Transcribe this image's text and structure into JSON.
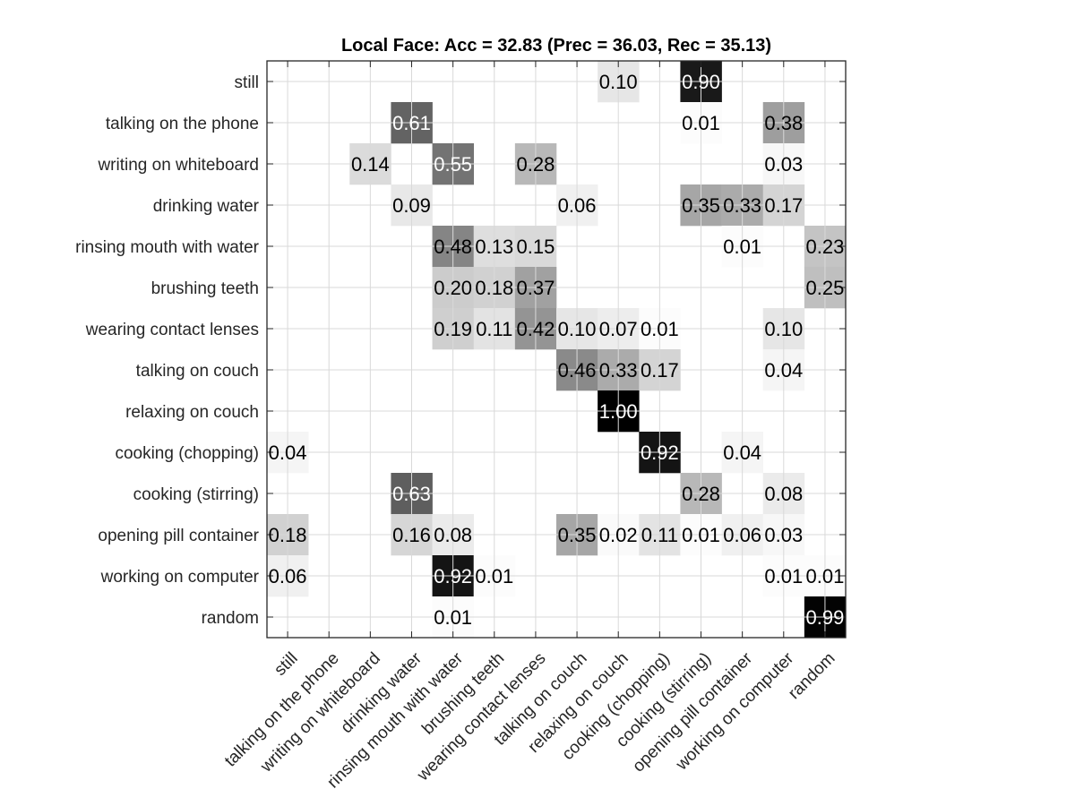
{
  "chart_data": {
    "type": "heatmap",
    "title": "Local Face: Acc = 32.83 (Prec = 36.03, Rec = 35.13)",
    "xlabel": "",
    "ylabel": "",
    "colormap": "gray-reversed",
    "range": [
      0,
      1
    ],
    "grid": true,
    "labels": [
      "still",
      "talking on the phone",
      "writing on whiteboard",
      "drinking water",
      "rinsing mouth with water",
      "brushing teeth",
      "wearing contact lenses",
      "talking on couch",
      "relaxing on couch",
      "cooking (chopping)",
      "cooking (stirring)",
      "opening pill container",
      "working on computer",
      "random"
    ],
    "matrix": [
      [
        0,
        0,
        0,
        0,
        0,
        0,
        0,
        0,
        0.1,
        0,
        0.9,
        0,
        0,
        0
      ],
      [
        0,
        0,
        0,
        0.61,
        0,
        0,
        0,
        0,
        0,
        0,
        0.01,
        0,
        0.38,
        0
      ],
      [
        0,
        0,
        0.14,
        0,
        0.55,
        0,
        0.28,
        0,
        0,
        0,
        0,
        0,
        0.03,
        0
      ],
      [
        0,
        0,
        0,
        0.09,
        0,
        0,
        0,
        0.06,
        0,
        0,
        0.35,
        0.33,
        0.17,
        0
      ],
      [
        0,
        0,
        0,
        0,
        0.48,
        0.13,
        0.15,
        0,
        0,
        0,
        0,
        0.01,
        0,
        0.23
      ],
      [
        0,
        0,
        0,
        0,
        0.2,
        0.18,
        0.37,
        0,
        0,
        0,
        0,
        0,
        0,
        0.25
      ],
      [
        0,
        0,
        0,
        0,
        0.19,
        0.11,
        0.42,
        0.1,
        0.07,
        0.01,
        0,
        0,
        0.1,
        0
      ],
      [
        0,
        0,
        0,
        0,
        0,
        0,
        0,
        0.46,
        0.33,
        0.17,
        0,
        0,
        0.04,
        0
      ],
      [
        0,
        0,
        0,
        0,
        0,
        0,
        0,
        0,
        1.0,
        0,
        0,
        0,
        0,
        0
      ],
      [
        0.04,
        0,
        0,
        0,
        0,
        0,
        0,
        0,
        0,
        0.92,
        0,
        0.04,
        0,
        0
      ],
      [
        0,
        0,
        0,
        0.63,
        0,
        0,
        0,
        0,
        0,
        0,
        0.28,
        0,
        0.08,
        0
      ],
      [
        0.18,
        0,
        0,
        0.16,
        0.08,
        0,
        0,
        0.35,
        0.02,
        0.11,
        0.01,
        0.06,
        0.03,
        0
      ],
      [
        0.06,
        0,
        0,
        0,
        0.92,
        0.01,
        0,
        0,
        0,
        0,
        0,
        0,
        0.01,
        0.01
      ],
      [
        0,
        0,
        0,
        0,
        0.01,
        0,
        0,
        0,
        0,
        0,
        0,
        0,
        0,
        0.99
      ]
    ]
  }
}
